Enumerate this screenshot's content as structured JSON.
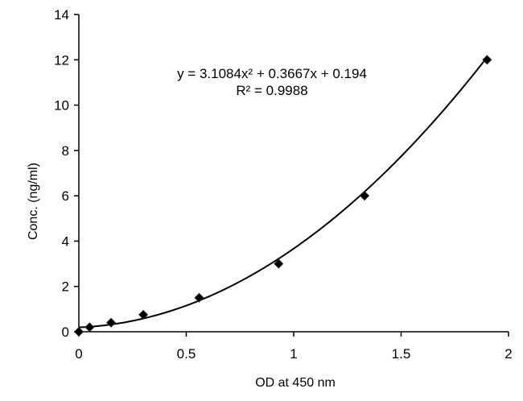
{
  "chart_data": {
    "type": "scatter",
    "title": "",
    "xlabel": "OD at 450 nm",
    "ylabel": "Conc. (ng/ml)",
    "xlim": [
      0,
      2
    ],
    "ylim": [
      0,
      14
    ],
    "xticks": [
      0,
      0.5,
      1,
      1.5,
      2
    ],
    "yticks": [
      0,
      2,
      4,
      6,
      8,
      10,
      12,
      14
    ],
    "xtick_labels": [
      "0",
      "0.5",
      "1",
      "1.5",
      "2"
    ],
    "ytick_labels": [
      "0",
      "2",
      "4",
      "6",
      "8",
      "10",
      "12",
      "14"
    ],
    "grid": false,
    "legend": "none",
    "marker": "diamond",
    "marker_color": "#000000",
    "trendline": {
      "type": "polynomial",
      "order": 2,
      "coefficients": [
        3.1084,
        0.3667,
        0.194
      ],
      "equation": "y = 3.1084x² + 0.3667x + 0.194",
      "r_squared": "R² = 0.9988",
      "color": "#000000"
    },
    "series": [
      {
        "x": [
          0.0,
          0.05,
          0.15,
          0.3,
          0.56,
          0.93,
          1.33,
          1.9
        ],
        "y": [
          0,
          0.2,
          0.4,
          0.75,
          1.5,
          3,
          6,
          12
        ]
      }
    ]
  }
}
